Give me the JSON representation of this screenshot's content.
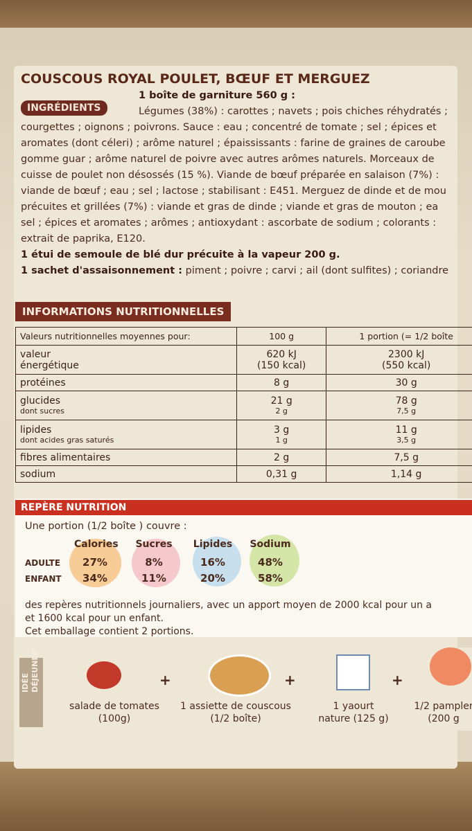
{
  "title": "COUSCOUS ROYAL POULET, BŒUF ET MERGUEZ",
  "ingredients": {
    "badge": "INGRÉDIENTS",
    "lines": [
      {
        "lead": "1 boîte de garniture 560 g :",
        "text": ""
      },
      {
        "lead": "",
        "text": "Légumes (38%) : carottes ; navets ; pois chiches réhydratés ;"
      },
      {
        "lead": "",
        "text": "courgettes ; oignons ; poivrons. Sauce : eau ; concentré de tomate ; sel ; épices et"
      },
      {
        "lead": "",
        "text": "aromates (dont céleri) ; arôme naturel ; épaississants : farine de graines de caroube"
      },
      {
        "lead": "",
        "text": "gomme guar ; arôme naturel de poivre avec autres arômes naturels. Morceaux de"
      },
      {
        "lead": "",
        "text": "cuisse de poulet non désossés (15 %). Viande de bœuf préparée en salaison (7%) :"
      },
      {
        "lead": "",
        "text": "viande de bœuf ; eau ; sel ; lactose ; stabilisant : E451. Merguez de dinde et de mou"
      },
      {
        "lead": "",
        "text": "précuites et grillées (7%) : viande et gras de dinde ; viande et gras de mouton ; ea"
      },
      {
        "lead": "",
        "text": "sel ; épices et aromates ; arômes ; antioxydant : ascorbate de sodium ; colorants :"
      },
      {
        "lead": "",
        "text": "extrait de paprika, E120."
      },
      {
        "lead": "1 étui de semoule de blé dur précuite à la vapeur 200 g.",
        "text": ""
      },
      {
        "lead": "1 sachet d'assaisonnement :",
        "text": "piment ; poivre ; carvi ; ail (dont sulfites) ; coriandre"
      }
    ]
  },
  "nutrition": {
    "heading": "INFORMATIONS NUTRITIONNELLES",
    "header": [
      "Valeurs nutritionnelles moyennes pour:",
      "100 g",
      "1 portion (= 1/2 boîte"
    ],
    "rows": [
      {
        "label": [
          "valeur",
          "énergétique"
        ],
        "per100": [
          "620 kJ",
          "(150 kcal)"
        ],
        "portion": [
          "2300 kJ",
          "(550 kcal)"
        ]
      },
      {
        "label": [
          "protéines"
        ],
        "per100": [
          "8 g"
        ],
        "portion": [
          "30 g"
        ]
      },
      {
        "label": [
          "glucides",
          "dont sucres"
        ],
        "per100": [
          "21 g",
          "2 g"
        ],
        "portion": [
          "78 g",
          "7,5 g"
        ]
      },
      {
        "label": [
          "lipides",
          "dont acides gras saturés"
        ],
        "per100": [
          "3 g",
          "1 g"
        ],
        "portion": [
          "11 g",
          "3,5 g"
        ]
      },
      {
        "label": [
          "fibres alimentaires"
        ],
        "per100": [
          "2 g"
        ],
        "portion": [
          "7,5 g"
        ]
      },
      {
        "label": [
          "sodium"
        ],
        "per100": [
          "0,31 g"
        ],
        "portion": [
          "1,14 g"
        ]
      }
    ]
  },
  "repere": {
    "heading": "REPÈRE NUTRITION",
    "intro": "Une portion (1/2 boîte ) couvre :",
    "columns": [
      "Calories",
      "Sucres",
      "Lipides",
      "Sodium"
    ],
    "rows": [
      {
        "label": "ADULTE",
        "values": [
          "27%",
          "8%",
          "16%",
          "48%"
        ]
      },
      {
        "label": "ENFANT",
        "values": [
          "34%",
          "11%",
          "20%",
          "58%"
        ]
      }
    ],
    "notes": [
      "des repères nutritionnels journaliers, avec un apport moyen de 2000 kcal pour un a",
      "et 1600 kcal pour un enfant.",
      "Cet emballage contient 2 portions."
    ]
  },
  "idee": {
    "label": [
      "IDÉE",
      "DÉJEUNER"
    ],
    "plus": "+",
    "items": [
      [
        "salade de tomates",
        "(100g)"
      ],
      [
        "1 assiette de couscous",
        "(1/2 boîte)"
      ],
      [
        "1 yaourt",
        "nature (125 g)"
      ],
      [
        "1/2 pampler",
        "(200 g"
      ]
    ]
  }
}
